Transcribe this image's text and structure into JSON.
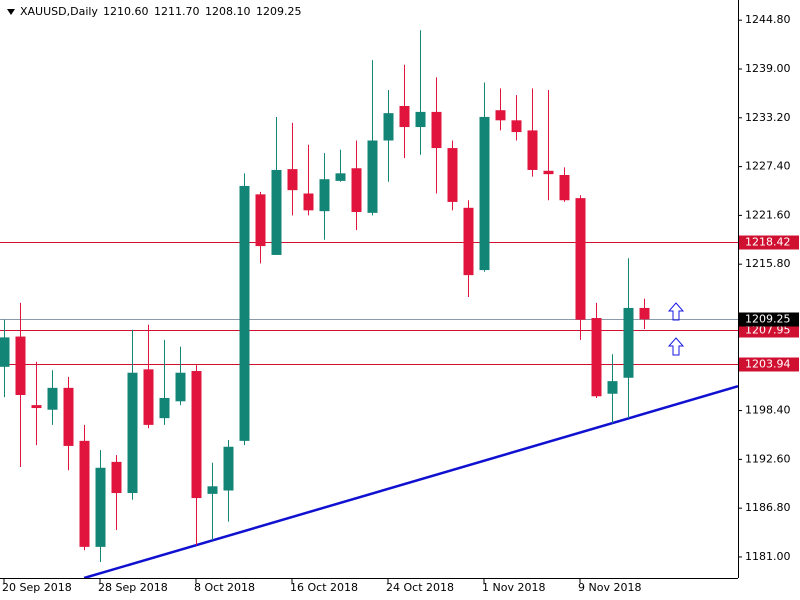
{
  "chart_data": {
    "type": "candlestick",
    "title": "XAUUSD,Daily",
    "header_values": [
      "1210.60",
      "1211.70",
      "1208.10",
      "1209.25"
    ],
    "categories": [
      "20 Sep 2018",
      null,
      null,
      null,
      null,
      null,
      "28 Sep 2018",
      null,
      null,
      null,
      null,
      null,
      "8 Oct 2018",
      null,
      null,
      null,
      null,
      null,
      "16 Oct 2018",
      null,
      null,
      null,
      null,
      null,
      "24 Oct 2018",
      null,
      null,
      null,
      null,
      null,
      "1 Nov 2018",
      null,
      null,
      null,
      null,
      null,
      "9 Nov 2018",
      null,
      null,
      null,
      null
    ],
    "open": [
      1203.6,
      1207.2,
      1199.05,
      1198.5,
      1201.1,
      1194.8,
      1182.2,
      1192.3,
      1188.6,
      1203.3,
      1197.5,
      1199.5,
      1203.1,
      1188.5,
      1188.9,
      1194.8,
      1224.1,
      1216.9,
      1227.1,
      1224.2,
      1222.1,
      1225.7,
      1227.2,
      1221.9,
      1230.5,
      1234.6,
      1232.1,
      1233.9,
      1229.6,
      1222.5,
      1215.1,
      1234.1,
      1232.9,
      1231.7,
      1226.9,
      1226.4,
      1223.65,
      1209.4,
      1200.4,
      1202.3,
      1210.6
    ],
    "high": [
      1209.2,
      1211.2,
      1204.2,
      1203.2,
      1202.4,
      1196.7,
      1193.7,
      1193.1,
      1208,
      1208.6,
      1206.8,
      1206,
      1203.8,
      1192.2,
      1194.9,
      1226.6,
      1224.4,
      1233.3,
      1232.6,
      1230,
      1229,
      1229.4,
      1230.5,
      1240.05,
      1236.5,
      1239.5,
      1243.6,
      1238,
      1230.5,
      1223.4,
      1237.4,
      1236.7,
      1235.9,
      1236.7,
      1236.5,
      1227.3,
      1224,
      1211.2,
      1205.1,
      1216.5,
      1211.7
    ],
    "low": [
      1200,
      1191.7,
      1194.3,
      1196.7,
      1191.3,
      1181.8,
      1180.4,
      1184.2,
      1187.8,
      1196.3,
      1196.7,
      1199.05,
      1182.4,
      1183,
      1185.2,
      1194.3,
      1215.9,
      1216.9,
      1221.6,
      1221.6,
      1218.7,
      1225.6,
      1219.85,
      1221.6,
      1225.6,
      1228.4,
      1228.8,
      1224.2,
      1222.2,
      1211.9,
      1214.9,
      1231.7,
      1230.5,
      1226.2,
      1223.4,
      1223.2,
      1206.8,
      1199.9,
      1196.9,
      1197.5,
      1208.1
    ],
    "close": [
      1207.1,
      1200.25,
      1198.7,
      1201.1,
      1194.2,
      1182.2,
      1191.6,
      1188.6,
      1202.9,
      1196.7,
      1199.9,
      1202.9,
      1188,
      1189.4,
      1194.1,
      1225.1,
      1217.95,
      1227,
      1224.6,
      1222.2,
      1225.9,
      1226.6,
      1222,
      1230.5,
      1233.75,
      1232.1,
      1233.9,
      1229.6,
      1223.2,
      1214.5,
      1233.3,
      1232.9,
      1231.5,
      1227,
      1226.5,
      1223.4,
      1209.2,
      1200.1,
      1201.9,
      1210.6,
      1209.25
    ],
    "up_color": "#138577",
    "down_color": "#e0143c",
    "ylim": [
      1178.5,
      1247.2
    ],
    "yticks": [
      {
        "value": 1244.8,
        "label": "1244.80"
      },
      {
        "value": 1239,
        "label": "1239.00"
      },
      {
        "value": 1233.2,
        "label": "1233.20"
      },
      {
        "value": 1227.4,
        "label": "1227.40"
      },
      {
        "value": 1221.6,
        "label": "1221.60"
      },
      {
        "value": 1215.8,
        "label": "1215.80"
      },
      {
        "value": 1198.4,
        "label": "1198.40"
      },
      {
        "value": 1192.6,
        "label": "1192.60"
      },
      {
        "value": 1186.8,
        "label": "1186.80"
      },
      {
        "value": 1181,
        "label": "1181.00"
      }
    ],
    "levels": [
      {
        "value": 1218.42,
        "label": "1218.42",
        "color": "#d01030"
      },
      {
        "value": 1207.95,
        "label": "1207.95",
        "color": "#d01030"
      },
      {
        "value": 1203.94,
        "label": "1203.94",
        "color": "#d01030"
      }
    ],
    "bid": {
      "value": 1209.25,
      "label": "1209.25",
      "color": "#8a9aa8"
    },
    "trendline": {
      "color": "#1010d0",
      "points": [
        {
          "index": 12,
          "value": 1182.4
        },
        {
          "index": 38,
          "value": 1196.9
        }
      ]
    }
  }
}
